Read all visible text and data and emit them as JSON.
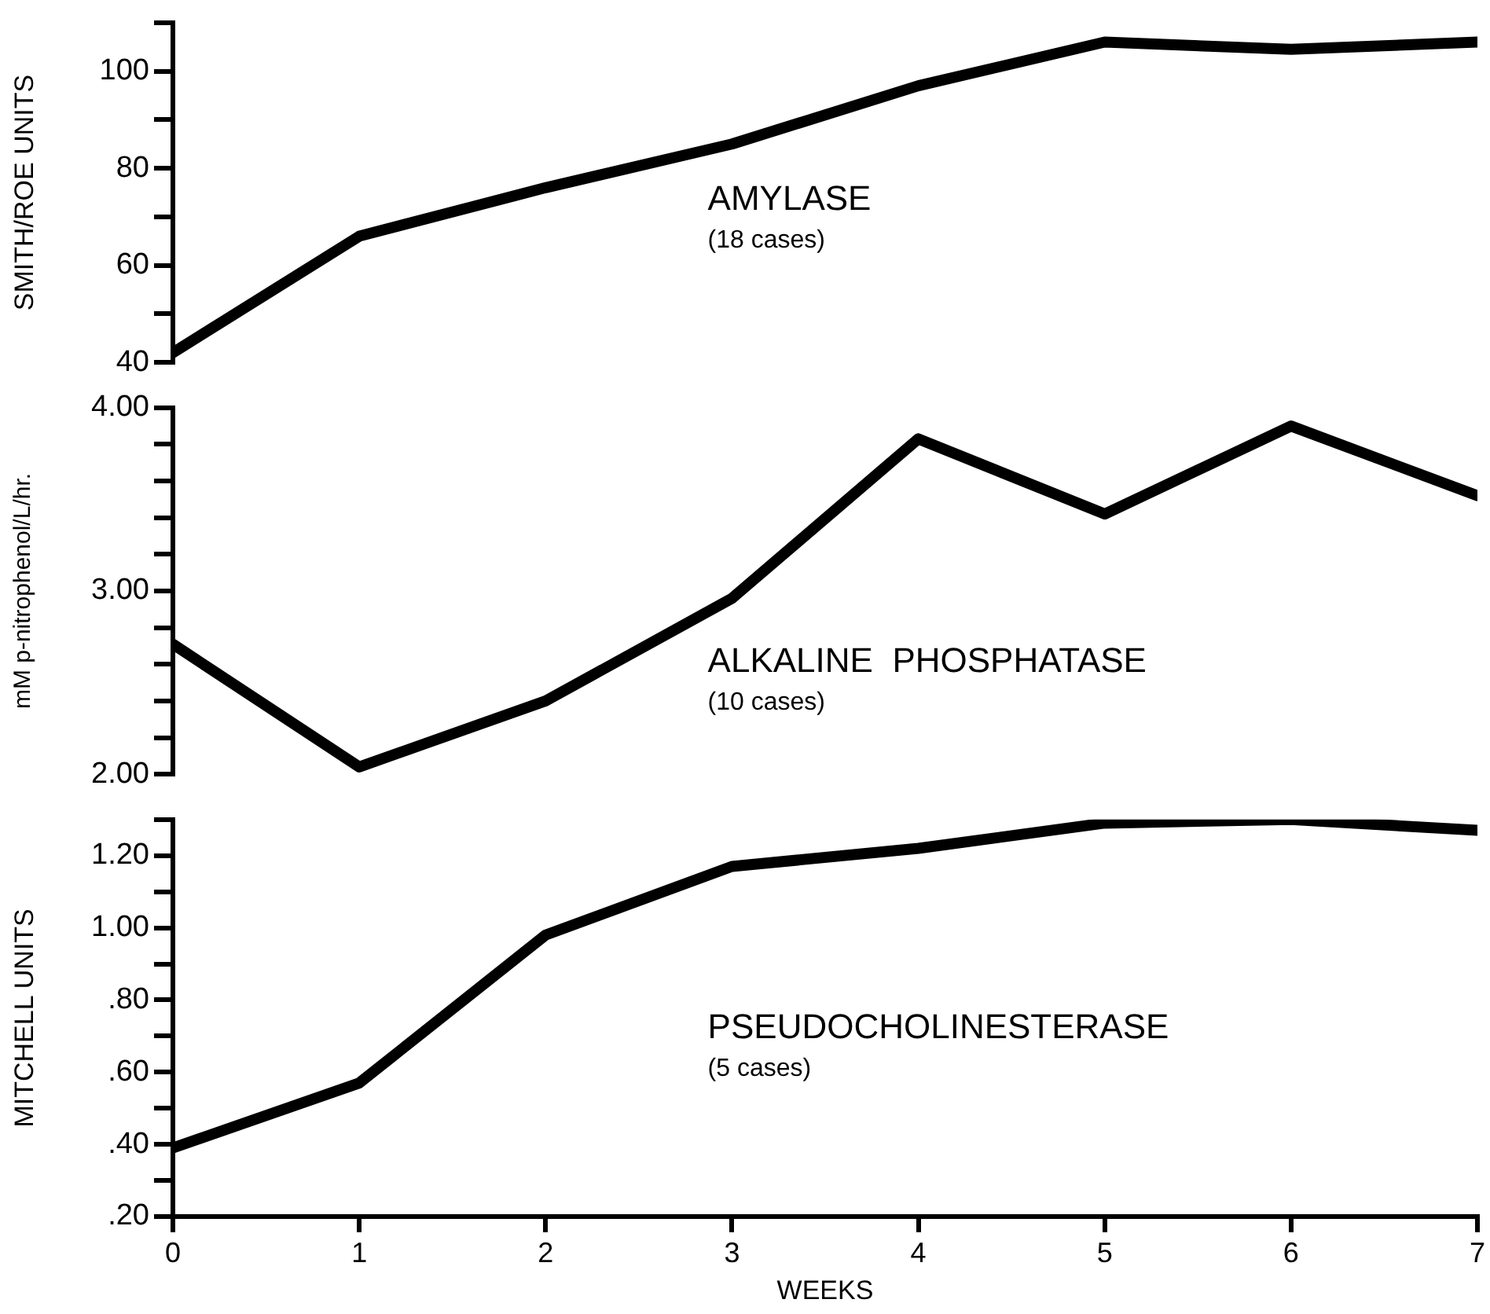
{
  "chart_data": [
    {
      "type": "line",
      "ylabel": "SMITH/ROE UNITS",
      "annotations": [
        "AMYLASE",
        "(18 cases)"
      ],
      "x": [
        0,
        1,
        2,
        3,
        4,
        5,
        6,
        7
      ],
      "xlim": [
        0,
        7
      ],
      "xticks": [
        0,
        1,
        2,
        3,
        4,
        5,
        6,
        7
      ],
      "tick_labels": "y",
      "series": [
        {
          "color": "#000000",
          "values": [
            42,
            66,
            76,
            85,
            97,
            106,
            104.5,
            106
          ]
        }
      ],
      "ylim": [
        40,
        110
      ],
      "yticks": [
        40,
        {
          "value": 50,
          "label": null
        },
        60,
        {
          "value": 70,
          "label": null
        },
        80,
        {
          "value": 90,
          "label": null
        },
        100,
        {
          "value": 110,
          "label": null
        }
      ],
      "grid": false,
      "legend": false,
      "marker": "none",
      "line_style": "solid"
    },
    {
      "type": "line",
      "ylabel": "mM p-nitrophenol/L/hr.",
      "annotations": [
        "ALKALINE  PHOSPHATASE",
        "(10 cases)"
      ],
      "x": [
        0,
        1,
        2,
        3,
        4,
        5,
        6,
        7
      ],
      "xlim": [
        0,
        7
      ],
      "xticks": [
        0,
        1,
        2,
        3,
        4,
        5,
        6,
        7
      ],
      "tick_labels": "y",
      "series": [
        {
          "color": "#000000",
          "values": [
            2.71,
            2.04,
            2.4,
            2.96,
            3.83,
            3.42,
            3.9,
            3.52
          ]
        }
      ],
      "ylim": [
        2,
        4
      ],
      "yticks": [
        {
          "value": 2,
          "label": "2.00"
        },
        {
          "value": 2.2,
          "label": null
        },
        {
          "value": 2.4,
          "label": null
        },
        {
          "value": 2.6,
          "label": null
        },
        {
          "value": 2.8,
          "label": null
        },
        {
          "value": 3,
          "label": "3.00"
        },
        {
          "value": 3.2,
          "label": null
        },
        {
          "value": 3.4,
          "label": null
        },
        {
          "value": 3.6,
          "label": null
        },
        {
          "value": 3.8,
          "label": null
        },
        {
          "value": 4,
          "label": "4.00"
        }
      ],
      "grid": false,
      "legend": false,
      "marker": "none",
      "line_style": "solid"
    },
    {
      "type": "line",
      "xlabel": "WEEKS",
      "ylabel": "MITCHELL UNITS",
      "annotations": [
        "PSEUDOCHOLINESTERASE",
        "(5 cases)"
      ],
      "x": [
        0,
        1,
        2,
        3,
        4,
        5,
        6,
        7
      ],
      "xlim": [
        0,
        7
      ],
      "xticks": [
        0,
        1,
        2,
        3,
        4,
        5,
        6,
        7
      ],
      "series": [
        {
          "color": "#000000",
          "values": [
            0.39,
            0.57,
            0.98,
            1.17,
            1.22,
            1.29,
            1.3,
            1.27
          ]
        }
      ],
      "ylim": [
        0.2,
        1.3
      ],
      "yticks": [
        {
          "value": 0.2,
          "label": ".20"
        },
        {
          "value": 0.3,
          "label": null
        },
        {
          "value": 0.4,
          "label": ".40"
        },
        {
          "value": 0.5,
          "label": null
        },
        {
          "value": 0.6,
          "label": ".60"
        },
        {
          "value": 0.7,
          "label": null
        },
        {
          "value": 0.8,
          "label": ".80"
        },
        {
          "value": 0.9,
          "label": null
        },
        {
          "value": 1.0,
          "label": "1.00"
        },
        {
          "value": 1.1,
          "label": null
        },
        {
          "value": 1.2,
          "label": "1.20"
        },
        {
          "value": 1.3,
          "label": null
        }
      ],
      "grid": false,
      "legend": false,
      "marker": "none",
      "line_style": "solid"
    }
  ]
}
